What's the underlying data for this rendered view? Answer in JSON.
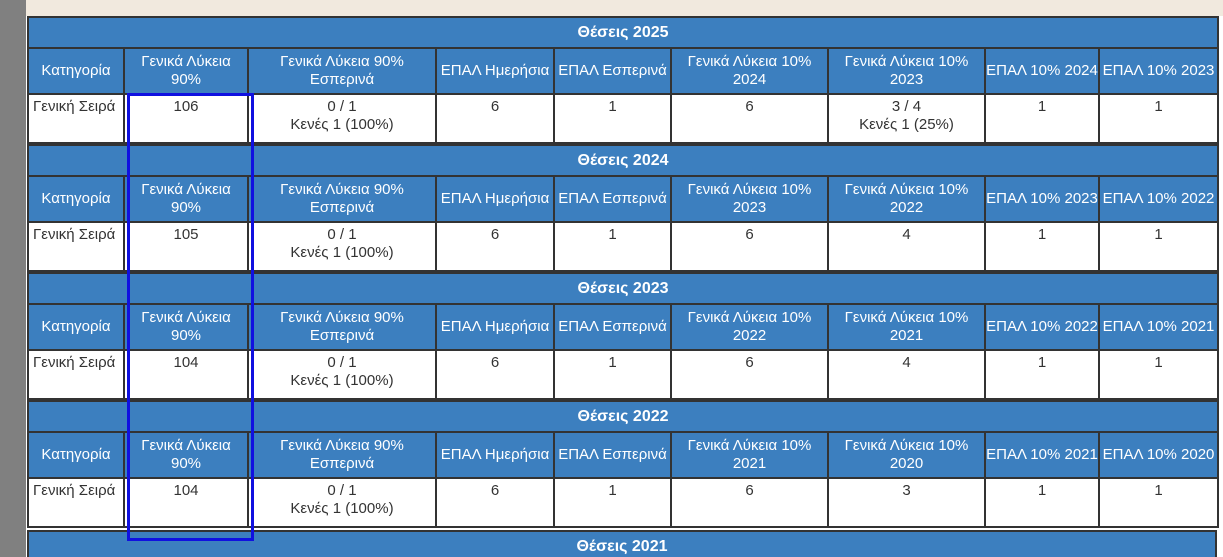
{
  "columns_by_year": {
    "2025": [
      "Κατηγορία",
      "Γενικά Λύκεια 90%",
      "Γενικά Λύκεια 90% Εσπερινά",
      "ΕΠΑΛ Ημερήσια",
      "ΕΠΑΛ Εσπερινά",
      "Γενικά Λύκεια 10% 2024",
      "Γενικά Λύκεια 10% 2023",
      "ΕΠΑΛ 10% 2024",
      "ΕΠΑΛ 10% 2023"
    ]
  },
  "sections": [
    {
      "caption": "Θέσεις 2025",
      "headers": [
        "Κατηγορία",
        "Γενικά Λύκεια 90%",
        "Γενικά Λύκεια 90% Εσπερινά",
        "ΕΠΑΛ Ημερήσια",
        "ΕΠΑΛ Εσπερινά",
        "Γενικά Λύκεια 10% 2024",
        "Γενικά Λύκεια 10% 2023",
        "ΕΠΑΛ 10% 2024",
        "ΕΠΑΛ 10% 2023"
      ],
      "row": [
        "Γενική Σειρά",
        "106",
        "0 / 1\nΚενές 1 (100%)",
        "6",
        "1",
        "6",
        "3 / 4\nΚενές 1 (25%)",
        "1",
        "1"
      ]
    },
    {
      "caption": "Θέσεις 2024",
      "headers": [
        "Κατηγορία",
        "Γενικά Λύκεια 90%",
        "Γενικά Λύκεια 90% Εσπερινά",
        "ΕΠΑΛ Ημερήσια",
        "ΕΠΑΛ Εσπερινά",
        "Γενικά Λύκεια 10% 2023",
        "Γενικά Λύκεια 10% 2022",
        "ΕΠΑΛ 10% 2023",
        "ΕΠΑΛ 10% 2022"
      ],
      "row": [
        "Γενική Σειρά",
        "105",
        "0 / 1\nΚενές 1 (100%)",
        "6",
        "1",
        "6",
        "4",
        "1",
        "1"
      ]
    },
    {
      "caption": "Θέσεις 2023",
      "headers": [
        "Κατηγορία",
        "Γενικά Λύκεια 90%",
        "Γενικά Λύκεια 90% Εσπερινά",
        "ΕΠΑΛ Ημερήσια",
        "ΕΠΑΛ Εσπερινά",
        "Γενικά Λύκεια 10% 2022",
        "Γενικά Λύκεια 10% 2021",
        "ΕΠΑΛ 10% 2022",
        "ΕΠΑΛ 10% 2021"
      ],
      "row": [
        "Γενική Σειρά",
        "104",
        "0 / 1\nΚενές 1 (100%)",
        "6",
        "1",
        "6",
        "4",
        "1",
        "1"
      ]
    },
    {
      "caption": "Θέσεις 2022",
      "headers": [
        "Κατηγορία",
        "Γενικά Λύκεια 90%",
        "Γενικά Λύκεια 90% Εσπερινά",
        "ΕΠΑΛ Ημερήσια",
        "ΕΠΑΛ Εσπερινά",
        "Γενικά Λύκεια 10% 2021",
        "Γενικά Λύκεια 10% 2020",
        "ΕΠΑΛ 10% 2021",
        "ΕΠΑΛ 10% 2020"
      ],
      "row": [
        "Γενική Σειρά",
        "104",
        "0 / 1\nΚενές 1 (100%)",
        "6",
        "1",
        "6",
        "3",
        "1",
        "1"
      ]
    }
  ],
  "next_caption": "Θέσεις 2021",
  "colors": {
    "header_bg": "#3c7fbf",
    "highlight": "#1010e0",
    "top_band": "#f1e9de"
  }
}
